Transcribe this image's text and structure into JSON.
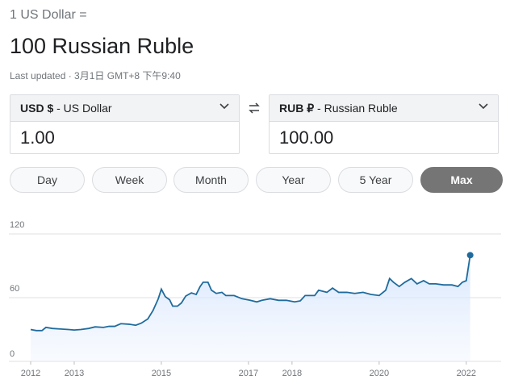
{
  "header": {
    "pre_text": "1 US Dollar =",
    "title": "100 Russian Ruble",
    "last_updated": "Last updated · 3月1日 GMT+8 下午9:40"
  },
  "converter": {
    "from": {
      "code": "USD $",
      "name": "- US Dollar",
      "amount": "1.00"
    },
    "to": {
      "code": "RUB ₽",
      "name": "- Russian Ruble",
      "amount": "100.00"
    }
  },
  "range_buttons": [
    "Day",
    "Week",
    "Month",
    "Year",
    "5 Year",
    "Max"
  ],
  "chart_data": {
    "type": "area",
    "color": "#1f6b9e",
    "grid": true,
    "xlim": [
      2011.5,
      2022.8
    ],
    "xticks": [
      2012,
      2013,
      2015,
      2017,
      2018,
      2020,
      2022
    ],
    "ylim": [
      0,
      120
    ],
    "yticks": [
      0,
      60,
      120
    ],
    "x": [
      2012.0,
      2012.13,
      2012.26,
      2012.35,
      2012.5,
      2012.69,
      2012.87,
      2013.0,
      2013.15,
      2013.33,
      2013.48,
      2013.67,
      2013.8,
      2013.93,
      2014.07,
      2014.26,
      2014.41,
      2014.54,
      2014.69,
      2014.81,
      2014.93,
      2015.0,
      2015.09,
      2015.19,
      2015.26,
      2015.37,
      2015.46,
      2015.56,
      2015.69,
      2015.8,
      2015.89,
      2015.96,
      2016.07,
      2016.15,
      2016.26,
      2016.39,
      2016.48,
      2016.67,
      2016.85,
      2017.04,
      2017.19,
      2017.31,
      2017.5,
      2017.69,
      2017.87,
      2018.06,
      2018.19,
      2018.3,
      2018.52,
      2018.61,
      2018.8,
      2018.93,
      2019.07,
      2019.26,
      2019.44,
      2019.63,
      2019.81,
      2020.0,
      2020.15,
      2020.24,
      2020.33,
      2020.46,
      2020.59,
      2020.74,
      2020.87,
      2021.02,
      2021.15,
      2021.3,
      2021.48,
      2021.67,
      2021.81,
      2021.91,
      2022.0,
      2022.09
    ],
    "values": [
      30,
      29,
      29,
      32,
      31,
      30.5,
      30,
      29.5,
      30,
      31,
      32.5,
      32,
      33,
      33,
      35.5,
      35,
      34,
      36,
      40,
      48,
      59,
      68,
      61,
      58,
      52,
      52,
      55,
      61.5,
      64.5,
      63,
      70.5,
      74.5,
      74.5,
      67,
      64,
      65,
      62,
      62,
      59,
      57.5,
      56,
      57.5,
      59,
      57.5,
      57.5,
      56,
      57,
      62,
      62,
      67,
      65,
      69,
      65,
      65,
      64,
      65,
      63,
      62,
      67,
      78,
      74.5,
      70.5,
      74.5,
      78,
      73,
      76,
      73,
      73,
      72,
      72,
      70.5,
      74.5,
      76,
      100
    ]
  }
}
